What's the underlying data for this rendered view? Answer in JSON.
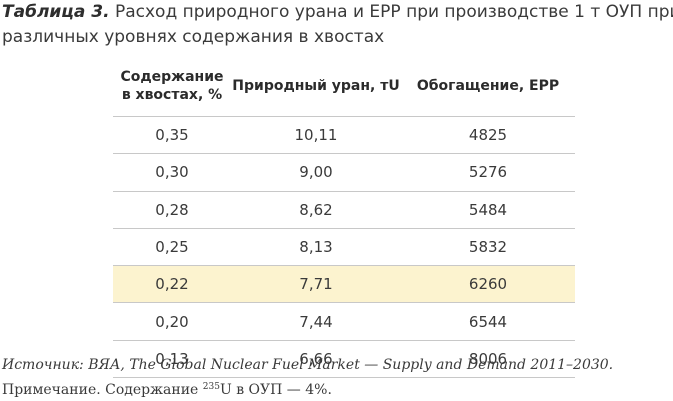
{
  "caption": {
    "label": "Таблица 3.",
    "text_line1": "Расход природного урана и ЕРР при производстве 1 т ОУП при",
    "text_line2": "различных уровнях содержания в хвостах"
  },
  "table": {
    "headers": {
      "col1_line1": "Содержание",
      "col1_line2": "в хвостах, %",
      "col2": "Природный уран, тU",
      "col3": "Обогащение, ЕРР"
    },
    "rows": [
      {
        "tails": "0,35",
        "uranium": "10,11",
        "swu": "4825"
      },
      {
        "tails": "0,30",
        "uranium": "9,00",
        "swu": "5276"
      },
      {
        "tails": "0,28",
        "uranium": "8,62",
        "swu": "5484"
      },
      {
        "tails": "0,25",
        "uranium": "8,13",
        "swu": "5832"
      },
      {
        "tails": "0,22",
        "uranium": "7,71",
        "swu": "6260"
      },
      {
        "tails": "0,20",
        "uranium": "7,44",
        "swu": "6544"
      },
      {
        "tails": "0,13",
        "uranium": "6,66",
        "swu": "8006"
      }
    ],
    "highlight_color": "#fcf3cf"
  },
  "source": "Источник: ВЯА, The Global Nuclear Fuel Market — Supply and Demand 2011–2030.",
  "note": {
    "prefix": "Примечание. Содержание ",
    "superscript": "235",
    "suffix": "U в ОУП — 4%."
  }
}
